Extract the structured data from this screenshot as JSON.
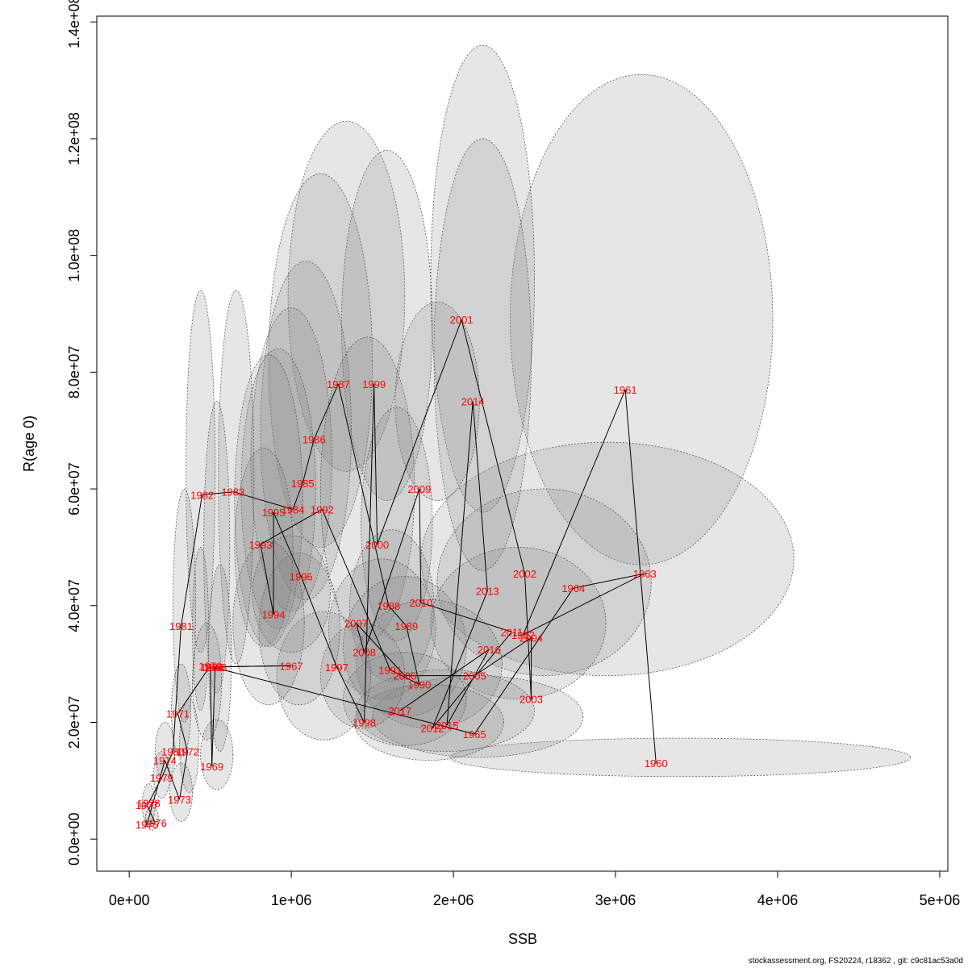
{
  "chart_data": {
    "type": "scatter",
    "title": "",
    "xlabel": "SSB",
    "ylabel": "R(age 0)",
    "xlim": [
      -200000,
      5050000
    ],
    "ylim": [
      -5500000,
      141000000
    ],
    "x_ticks": [
      0,
      1000000,
      2000000,
      3000000,
      4000000,
      5000000
    ],
    "x_tick_labels": [
      "0e+00",
      "1e+06",
      "2e+06",
      "3e+06",
      "4e+06",
      "5e+06"
    ],
    "y_ticks": [
      0,
      20000000,
      40000000,
      60000000,
      80000000,
      100000000,
      120000000,
      140000000
    ],
    "y_tick_labels": [
      "0.0e+00",
      "2.0e+07",
      "4.0e+07",
      "6.0e+07",
      "8.0e+07",
      "1.0e+08",
      "1.2e+08",
      "1.4e+08"
    ],
    "grid": false,
    "colors": {
      "point_label": "#ff0000",
      "line": "#000000",
      "ellipse_fill": "#808080",
      "ellipse_stroke": "#555555"
    },
    "points": [
      {
        "year": "1960",
        "ssb": 3250000,
        "r": 13000000
      },
      {
        "year": "1961",
        "ssb": 3060000,
        "r": 77000000
      },
      {
        "year": "1962",
        "ssb": 2430000,
        "r": 35000000
      },
      {
        "year": "1963",
        "ssb": 3180000,
        "r": 45500000
      },
      {
        "year": "1964",
        "ssb": 2740000,
        "r": 43000000
      },
      {
        "year": "1965",
        "ssb": 2130000,
        "r": 18000000
      },
      {
        "year": "1966",
        "ssb": 510000,
        "r": 29500000
      },
      {
        "year": "1967",
        "ssb": 1000000,
        "r": 29700000
      },
      {
        "year": "1968",
        "ssb": 530000,
        "r": 29500000
      },
      {
        "year": "1969",
        "ssb": 510000,
        "r": 12500000
      },
      {
        "year": "1970",
        "ssb": 500000,
        "r": 29700000
      },
      {
        "year": "1971",
        "ssb": 300000,
        "r": 21500000
      },
      {
        "year": "1972",
        "ssb": 360000,
        "r": 15000000
      },
      {
        "year": "1973",
        "ssb": 310000,
        "r": 6800000
      },
      {
        "year": "1974",
        "ssb": 220000,
        "r": 13500000
      },
      {
        "year": "1975",
        "ssb": 110000,
        "r": 2500000
      },
      {
        "year": "1976",
        "ssb": 160000,
        "r": 2800000
      },
      {
        "year": "1977",
        "ssb": 110000,
        "r": 5800000
      },
      {
        "year": "1978",
        "ssb": 120000,
        "r": 6200000
      },
      {
        "year": "1979",
        "ssb": 200000,
        "r": 10500000
      },
      {
        "year": "1980",
        "ssb": 270000,
        "r": 15000000
      },
      {
        "year": "1981",
        "ssb": 320000,
        "r": 36500000
      },
      {
        "year": "1982",
        "ssb": 450000,
        "r": 59000000
      },
      {
        "year": "1983",
        "ssb": 640000,
        "r": 59500000
      },
      {
        "year": "1984",
        "ssb": 1010000,
        "r": 56500000
      },
      {
        "year": "1985",
        "ssb": 1070000,
        "r": 61000000
      },
      {
        "year": "1986",
        "ssb": 1140000,
        "r": 68500000
      },
      {
        "year": "1987",
        "ssb": 1290000,
        "r": 78000000
      },
      {
        "year": "1988",
        "ssb": 1600000,
        "r": 40000000
      },
      {
        "year": "1989",
        "ssb": 1710000,
        "r": 36500000
      },
      {
        "year": "1990",
        "ssb": 1790000,
        "r": 26500000
      },
      {
        "year": "1991",
        "ssb": 1610000,
        "r": 29000000
      },
      {
        "year": "1992",
        "ssb": 1190000,
        "r": 56500000
      },
      {
        "year": "1993",
        "ssb": 810000,
        "r": 50500000
      },
      {
        "year": "1994",
        "ssb": 890000,
        "r": 38500000
      },
      {
        "year": "1995",
        "ssb": 890000,
        "r": 56000000
      },
      {
        "year": "1996",
        "ssb": 1060000,
        "r": 45000000
      },
      {
        "year": "1997",
        "ssb": 1280000,
        "r": 29500000
      },
      {
        "year": "1998",
        "ssb": 1450000,
        "r": 20000000
      },
      {
        "year": "1999",
        "ssb": 1510000,
        "r": 78000000
      },
      {
        "year": "2000",
        "ssb": 1530000,
        "r": 50500000
      },
      {
        "year": "2001",
        "ssb": 2050000,
        "r": 89000000
      },
      {
        "year": "2002",
        "ssb": 2440000,
        "r": 45500000
      },
      {
        "year": "2003",
        "ssb": 2480000,
        "r": 24000000
      },
      {
        "year": "2004",
        "ssb": 2480000,
        "r": 34500000
      },
      {
        "year": "2005",
        "ssb": 2130000,
        "r": 28000000
      },
      {
        "year": "2006",
        "ssb": 1700000,
        "r": 28000000
      },
      {
        "year": "2007",
        "ssb": 1400000,
        "r": 37000000
      },
      {
        "year": "2008",
        "ssb": 1450000,
        "r": 32000000
      },
      {
        "year": "2009",
        "ssb": 1790000,
        "r": 60000000
      },
      {
        "year": "2010",
        "ssb": 1800000,
        "r": 40500000
      },
      {
        "year": "2011",
        "ssb": 2360000,
        "r": 35500000
      },
      {
        "year": "2012",
        "ssb": 1870000,
        "r": 19000000
      },
      {
        "year": "2013",
        "ssb": 2210000,
        "r": 42500000
      },
      {
        "year": "2014",
        "ssb": 2120000,
        "r": 75000000
      },
      {
        "year": "2015",
        "ssb": 1960000,
        "r": 19500000
      },
      {
        "year": "2016",
        "ssb": 2220000,
        "r": 32500000
      },
      {
        "year": "2017",
        "ssb": 1670000,
        "r": 22000000
      }
    ],
    "ellipses": [
      {
        "cx": 3400000,
        "cy": 14000000,
        "rx": 1420000,
        "ry": 3300000
      },
      {
        "cx": 3160000,
        "cy": 89000000,
        "rx": 810000,
        "ry": 42000000
      },
      {
        "cx": 2950000,
        "cy": 48000000,
        "rx": 1150000,
        "ry": 20000000
      },
      {
        "cx": 2560000,
        "cy": 44000000,
        "rx": 660000,
        "ry": 16000000
      },
      {
        "cx": 2400000,
        "cy": 37000000,
        "rx": 540000,
        "ry": 13000000
      },
      {
        "cx": 2150000,
        "cy": 21000000,
        "rx": 650000,
        "ry": 7000000
      },
      {
        "cx": 2180000,
        "cy": 96000000,
        "rx": 320000,
        "ry": 40000000
      },
      {
        "cx": 2180000,
        "cy": 83000000,
        "rx": 300000,
        "ry": 37000000
      },
      {
        "cx": 1900000,
        "cy": 75000000,
        "rx": 260000,
        "ry": 17000000
      },
      {
        "cx": 1340000,
        "cy": 93000000,
        "rx": 360000,
        "ry": 30000000
      },
      {
        "cx": 1590000,
        "cy": 88000000,
        "rx": 280000,
        "ry": 30000000
      },
      {
        "cx": 1180000,
        "cy": 82000000,
        "rx": 320000,
        "ry": 32000000
      },
      {
        "cx": 1090000,
        "cy": 70000000,
        "rx": 280000,
        "ry": 29000000
      },
      {
        "cx": 1000000,
        "cy": 65000000,
        "rx": 250000,
        "ry": 26000000
      },
      {
        "cx": 920000,
        "cy": 60000000,
        "rx": 230000,
        "ry": 24000000
      },
      {
        "cx": 860000,
        "cy": 58000000,
        "rx": 210000,
        "ry": 25000000
      },
      {
        "cx": 830000,
        "cy": 50000000,
        "rx": 180000,
        "ry": 17000000
      },
      {
        "cx": 1470000,
        "cy": 60000000,
        "rx": 290000,
        "ry": 26000000
      },
      {
        "cx": 1650000,
        "cy": 54000000,
        "rx": 220000,
        "ry": 20000000
      },
      {
        "cx": 1620000,
        "cy": 40000000,
        "rx": 260000,
        "ry": 13000000
      },
      {
        "cx": 1560000,
        "cy": 36000000,
        "rx": 330000,
        "ry": 12000000
      },
      {
        "cx": 1700000,
        "cy": 33000000,
        "rx": 380000,
        "ry": 12000000
      },
      {
        "cx": 1850000,
        "cy": 30000000,
        "rx": 450000,
        "ry": 11000000
      },
      {
        "cx": 1950000,
        "cy": 22000000,
        "rx": 550000,
        "ry": 7000000
      },
      {
        "cx": 1850000,
        "cy": 20000000,
        "rx": 460000,
        "ry": 6500000
      },
      {
        "cx": 1700000,
        "cy": 24000000,
        "rx": 380000,
        "ry": 8000000
      },
      {
        "cx": 1440000,
        "cy": 28000000,
        "rx": 260000,
        "ry": 9000000
      },
      {
        "cx": 1200000,
        "cy": 28000000,
        "rx": 290000,
        "ry": 11000000
      },
      {
        "cx": 1050000,
        "cy": 36000000,
        "rx": 250000,
        "ry": 13000000
      },
      {
        "cx": 1000000,
        "cy": 42000000,
        "rx": 240000,
        "ry": 10000000
      },
      {
        "cx": 860000,
        "cy": 37000000,
        "rx": 220000,
        "ry": 14000000
      },
      {
        "cx": 440000,
        "cy": 63000000,
        "rx": 90000,
        "ry": 31000000
      },
      {
        "cx": 660000,
        "cy": 62000000,
        "rx": 110000,
        "ry": 32000000
      },
      {
        "cx": 540000,
        "cy": 50000000,
        "rx": 80000,
        "ry": 25000000
      },
      {
        "cx": 440000,
        "cy": 36000000,
        "rx": 50000,
        "ry": 14000000
      },
      {
        "cx": 340000,
        "cy": 40000000,
        "rx": 70000,
        "ry": 20000000
      },
      {
        "cx": 560000,
        "cy": 31000000,
        "rx": 70000,
        "ry": 16000000
      },
      {
        "cx": 480000,
        "cy": 27000000,
        "rx": 90000,
        "ry": 10000000
      },
      {
        "cx": 540000,
        "cy": 14500000,
        "rx": 100000,
        "ry": 6000000
      },
      {
        "cx": 320000,
        "cy": 22000000,
        "rx": 60000,
        "ry": 8000000
      },
      {
        "cx": 370000,
        "cy": 16000000,
        "rx": 60000,
        "ry": 8000000
      },
      {
        "cx": 320000,
        "cy": 8000000,
        "rx": 70000,
        "ry": 5000000
      },
      {
        "cx": 220000,
        "cy": 15000000,
        "rx": 60000,
        "ry": 5000000
      },
      {
        "cx": 200000,
        "cy": 11000000,
        "rx": 50000,
        "ry": 4000000
      },
      {
        "cx": 120000,
        "cy": 6000000,
        "rx": 40000,
        "ry": 3500000
      },
      {
        "cx": 140000,
        "cy": 3500000,
        "rx": 40000,
        "ry": 2000000
      }
    ]
  },
  "footer": "stockassessment.org, FS20224, r18362 , git: c9c81ac53a0d"
}
